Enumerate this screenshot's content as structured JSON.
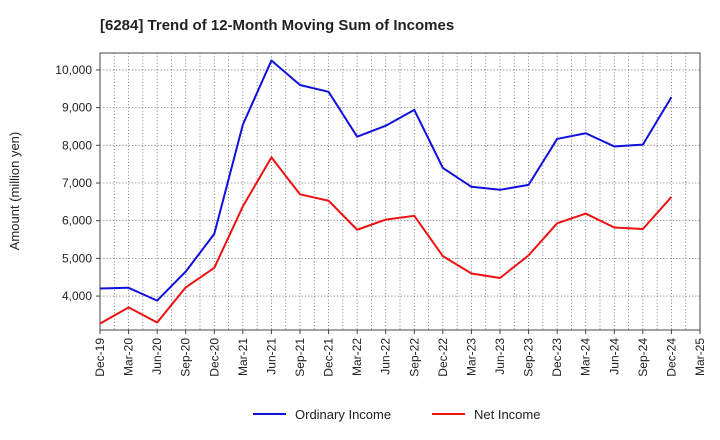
{
  "chart_data": {
    "type": "line",
    "title": "[6284]  Trend of 12-Month Moving Sum of Incomes",
    "xlabel": "",
    "ylabel": "Amount (million yen)",
    "ylim": [
      3100,
      10450
    ],
    "y_ticks": [
      4000,
      5000,
      6000,
      7000,
      8000,
      9000,
      10000
    ],
    "y_tick_labels": [
      "4,000",
      "5,000",
      "6,000",
      "7,000",
      "8,000",
      "9,000",
      "10,000"
    ],
    "grid": true,
    "legend_position": "bottom-center",
    "categories": [
      "Dec-19",
      "Mar-20",
      "Jun-20",
      "Sep-20",
      "Dec-20",
      "Mar-21",
      "Jun-21",
      "Sep-21",
      "Dec-21",
      "Mar-22",
      "Jun-22",
      "Sep-22",
      "Dec-22",
      "Mar-23",
      "Jun-23",
      "Sep-23",
      "Dec-23",
      "Mar-24",
      "Jun-24",
      "Sep-24",
      "Dec-24",
      "Mar-25"
    ],
    "series": [
      {
        "name": "Ordinary Income",
        "color": "#1010dd",
        "values": [
          4200,
          4220,
          3880,
          4650,
          5650,
          8550,
          10250,
          9600,
          9420,
          8230,
          8520,
          8940,
          7400,
          6900,
          6820,
          6950,
          8170,
          8320,
          7970,
          8020,
          9280,
          null
        ]
      },
      {
        "name": "Net Income",
        "color": "#ee1111",
        "values": [
          3270,
          3700,
          3300,
          4230,
          4750,
          6380,
          7680,
          6700,
          6530,
          5760,
          6030,
          6130,
          5060,
          4600,
          4480,
          5080,
          5930,
          6190,
          5820,
          5780,
          6630,
          null
        ]
      }
    ]
  }
}
